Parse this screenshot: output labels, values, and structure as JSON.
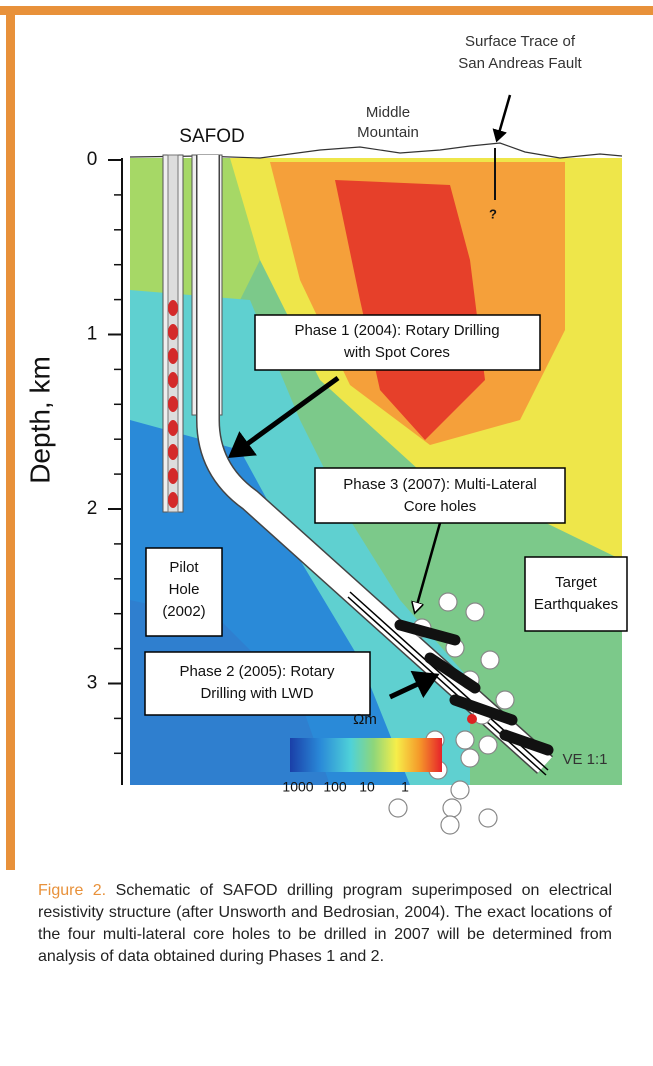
{
  "figure": {
    "safod": "SAFOD",
    "middle_mountain": [
      "Middle",
      "Mountain"
    ],
    "surface_trace": [
      "Surface Trace of",
      "San Andreas Fault"
    ],
    "question": "?",
    "y_label": "Depth, km",
    "depth_ticks": [
      0,
      1,
      2,
      3
    ],
    "phase1": [
      "Phase 1 (2004): Rotary Drilling",
      "with Spot Cores"
    ],
    "phase3": [
      "Phase 3 (2007): Multi-Lateral",
      "Core holes"
    ],
    "target": [
      "Target",
      "Earthquakes"
    ],
    "pilot": [
      "Pilot",
      "Hole",
      "(2002)"
    ],
    "phase2": [
      "Phase 2 (2005): Rotary",
      "Drilling with LWD"
    ],
    "unit": "Ωm",
    "colorbar_labels": [
      "1000",
      "100",
      "10",
      "1"
    ],
    "ve": "VE 1:1"
  },
  "caption": {
    "label": "Figure 2.",
    "text": "Schematic of SAFOD drilling program superimposed on electrical resistivity structure (after Unsworth and Bedrosian, 2004). The exact locations of the four multi-lateral core holes to be drilled in 2007 will be determined from analysis of data obtained during Phases 1 and 2."
  }
}
